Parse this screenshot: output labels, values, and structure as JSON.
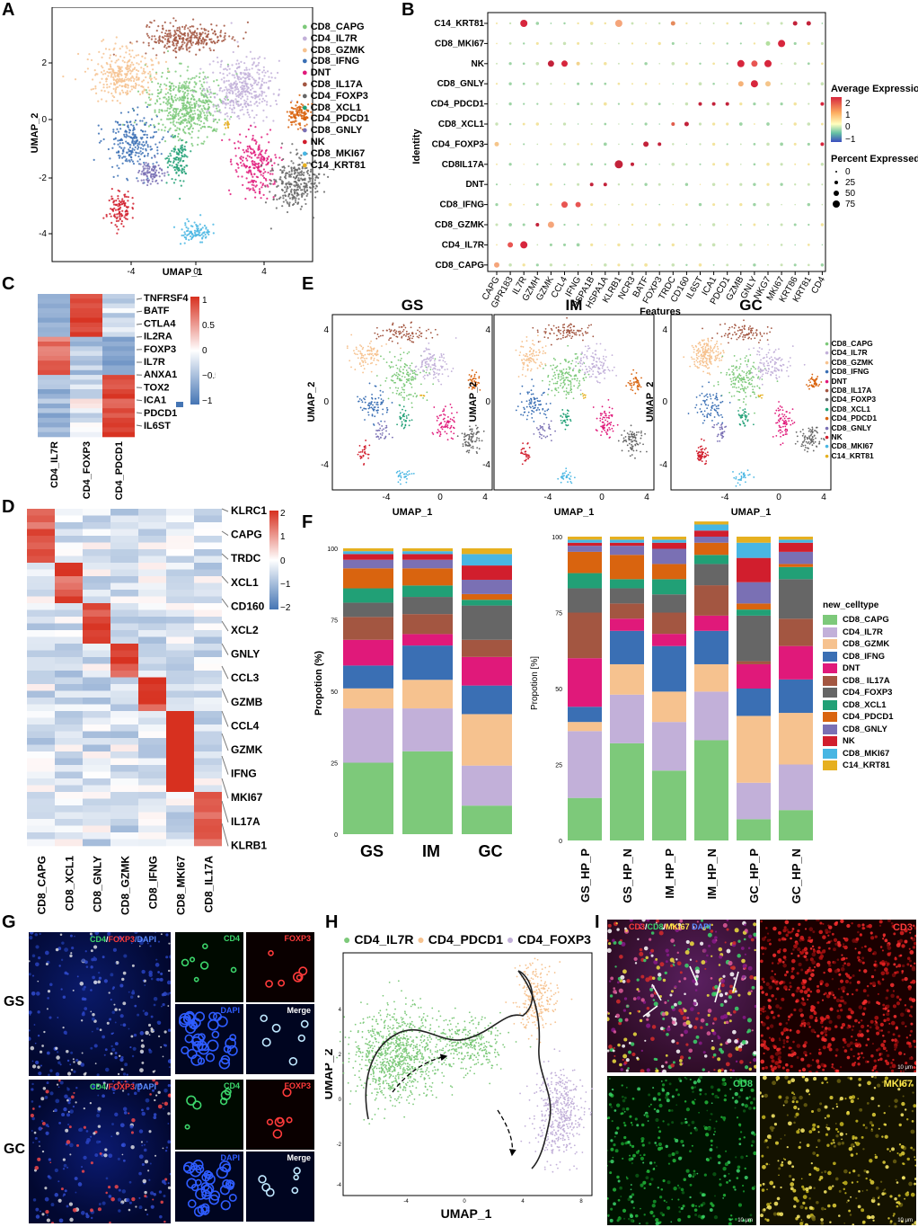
{
  "panel_labels": [
    "A",
    "B",
    "C",
    "D",
    "E",
    "F",
    "G",
    "H",
    "I"
  ],
  "celltypes": [
    "CD8_CAPG",
    "CD4_IL7R",
    "CD8_GZMK",
    "CD8_IFNG",
    "DNT",
    "CD8_IL17A",
    "CD4_FOXP3",
    "CD8_XCL1",
    "CD4_PDCD1",
    "CD8_GNLY",
    "NK",
    "CD8_MKI67",
    "C14_KRT81"
  ],
  "colors": {
    "CD8_CAPG": "#7dc97a",
    "CD4_IL7R": "#c2b0d9",
    "CD8_GZMK": "#f6c28f",
    "CD8_IFNG": "#3a6fb4",
    "DNT": "#e0197a",
    "CD8_IL17A": "#a35641",
    "CD4_FOXP3": "#666666",
    "CD8_XCL1": "#21a076",
    "CD4_PDCD1": "#d9640f",
    "CD8_GNLY": "#7a70b4",
    "NK": "#d11e2d",
    "CD8_MKI67": "#48b6e3",
    "C14_KRT81": "#e6b020"
  },
  "panelA": {
    "xlabel": "UMAP_1",
    "ylabel": "UMAP_2",
    "xticks": [
      "-4",
      "0",
      "4"
    ],
    "yticks": [
      "2",
      "0",
      "-2",
      "-4"
    ],
    "legend_labels": [
      "CD8_CAPG",
      "CD4_IL7R",
      "CD8_GZMK",
      "CD8_IFNG",
      "DNT",
      "CD8_IL17A",
      "CD4_FOXP3",
      "CD8_XCL1",
      "CD4_PDCD1",
      "CD8_GNLY",
      "NK",
      "CD8_MKI67",
      "C14_KRT81"
    ]
  },
  "panelB": {
    "xlabel": "Features",
    "ylabel": "Identity",
    "features": [
      "CAPG",
      "GPR183",
      "IL7R",
      "GZMH",
      "GZMK",
      "CCL4",
      "IFNG",
      "HSPA1B",
      "HSPA1A",
      "KLRB1",
      "NCR3",
      "BATF",
      "FOXP3",
      "TRDC",
      "CD160",
      "IL6ST",
      "ICA1",
      "PDCD1",
      "GZMB",
      "GNLY",
      "NKG7",
      "MKI67",
      "KRT86",
      "KRT81",
      "CD4"
    ],
    "identities": [
      "C14_KRT81",
      "CD8_MKI67",
      "NK",
      "CD8_GNLY",
      "CD4_PDCD1",
      "CD8_XCL1",
      "CD4_FOXP3",
      "CD8IL17A",
      "DNT",
      "CD8_IFNG",
      "CD8_GZMK",
      "CD4_IL7R",
      "CD8_CAPG"
    ],
    "expr_title": "Average Expression",
    "expr_ticks": [
      "2",
      "1",
      "0",
      "−1"
    ],
    "pct_title": "Percent Expressed",
    "pct_ticks": [
      "0",
      "25",
      "50",
      "75"
    ]
  },
  "panelC": {
    "columns": [
      "CD4_IL7R",
      "CD4_FOXP3",
      "CD4_PDCD1"
    ],
    "genes": [
      "TNFRSF4",
      "BATF",
      "CTLA4",
      "IL2RA",
      "FOXP3",
      "IL7R",
      "ANXA1",
      "TOX2",
      "ICA1",
      "PDCD1",
      "IL6ST"
    ],
    "scale_ticks": [
      "1",
      "0.5",
      "0",
      "−0.5",
      "−1"
    ]
  },
  "panelD": {
    "columns": [
      "CD8_CAPG",
      "CD8_XCL1",
      "CD8_GNLY",
      "CD8_GZMK",
      "CD8_IFNG",
      "CD8_MKI67",
      "CD8_IL17A"
    ],
    "genes": [
      "KLRC1",
      "CAPG",
      "TRDC",
      "XCL1",
      "CD160",
      "XCL2",
      "GNLY",
      "CCL3",
      "GZMB",
      "CCL4",
      "GZMK",
      "IFNG",
      "MKI67",
      "IL17A",
      "KLRB1"
    ],
    "scale_ticks": [
      "2",
      "1",
      "0",
      "−1",
      "−2"
    ]
  },
  "panelE": {
    "titles": [
      "GS",
      "IM",
      "GC"
    ],
    "xlabel": "UMAP_1",
    "ylabel": "UMAP_2",
    "xticks": [
      "-4",
      "0",
      "4"
    ],
    "yticks": [
      "4",
      "0",
      "-4"
    ],
    "legend_labels": [
      "CD8_CAPG",
      "CD4_IL7R",
      "CD8_GZMK",
      "CD8_IFNG",
      "DNT",
      "CD8_IL17A",
      "CD4_FOXP3",
      "CD8_XCL1",
      "CD4_PDCD1",
      "CD8_GNLY",
      "NK",
      "CD8_MKI67",
      "C14_KRT81"
    ]
  },
  "panelF": {
    "legend_title": "new_celltype",
    "legend_labels": [
      "CD8_CAPG",
      "CD4_IL7R",
      "CD8_GZMK",
      "CD8_IFNG",
      "DNT",
      "CD8_ IL17A",
      " CD4_FOXP3",
      "CD8_XCL1",
      "CD4_PDCD1",
      " CD8_GNLY",
      "NK",
      "CD8_MKI67",
      " C14_KRT81"
    ],
    "left_ylabel": "Propotion (%)",
    "right_ylabel": "Propotion [%]",
    "yticks": [
      "100",
      "75",
      "50",
      "25",
      "0"
    ]
  },
  "chart_data": [
    {
      "type": "bar",
      "stacked": true,
      "title": "",
      "ylabel": "Propotion (%)",
      "ylim": [
        0,
        100
      ],
      "categories": [
        "GS",
        "IM",
        "GC"
      ],
      "series": [
        {
          "name": "CD8_CAPG",
          "values": [
            25,
            29,
            10
          ]
        },
        {
          "name": "CD4_IL7R",
          "values": [
            19,
            15,
            14
          ]
        },
        {
          "name": "CD8_GZMK",
          "values": [
            7,
            10,
            18
          ]
        },
        {
          "name": "CD8_IFNG",
          "values": [
            8,
            12,
            10
          ]
        },
        {
          "name": "DNT",
          "values": [
            9,
            4,
            10
          ]
        },
        {
          "name": "CD8_IL17A",
          "values": [
            8,
            7,
            6
          ]
        },
        {
          "name": "CD4_FOXP3",
          "values": [
            5,
            6,
            12
          ]
        },
        {
          "name": "CD8_XCL1",
          "values": [
            5,
            4,
            2
          ]
        },
        {
          "name": "CD4_PDCD1",
          "values": [
            7,
            6,
            2
          ]
        },
        {
          "name": "CD8_GNLY",
          "values": [
            3,
            3,
            5
          ]
        },
        {
          "name": "NK",
          "values": [
            2,
            2,
            5
          ]
        },
        {
          "name": "CD8_MKI67",
          "values": [
            1,
            1,
            4
          ]
        },
        {
          "name": "C14_KRT81",
          "values": [
            1,
            1,
            2
          ]
        }
      ]
    },
    {
      "type": "bar",
      "stacked": true,
      "title": "",
      "ylabel": "Propotion [%]",
      "ylim": [
        0,
        100
      ],
      "categories": [
        "GS_HP_P",
        "GS_HP_N",
        "IM_HP_P",
        "IM_HP_N",
        "GC_HP_P",
        "GC_HP_N"
      ],
      "series": [
        {
          "name": "CD8_CAPG",
          "values": [
            14,
            32,
            23,
            33,
            7,
            10
          ]
        },
        {
          "name": "CD4_IL7R",
          "values": [
            22,
            16,
            16,
            16,
            12,
            15
          ]
        },
        {
          "name": "CD8_GZMK",
          "values": [
            3,
            10,
            10,
            9,
            22,
            17
          ]
        },
        {
          "name": "CD8_IFNG",
          "values": [
            5,
            11,
            15,
            11,
            9,
            11
          ]
        },
        {
          "name": "DNT",
          "values": [
            16,
            4,
            4,
            5,
            8,
            11
          ]
        },
        {
          "name": "CD8_IL17A",
          "values": [
            15,
            5,
            7,
            10,
            1,
            9
          ]
        },
        {
          "name": "CD4_FOXP3",
          "values": [
            8,
            5,
            6,
            7,
            15,
            13
          ]
        },
        {
          "name": "CD8_XCL1",
          "values": [
            5,
            3,
            5,
            3,
            2,
            4
          ]
        },
        {
          "name": "CD4_PDCD1",
          "values": [
            7,
            8,
            5,
            4,
            2,
            1
          ]
        },
        {
          "name": "CD8_GNLY",
          "values": [
            2,
            3,
            5,
            2,
            7,
            4
          ]
        },
        {
          "name": "NK",
          "values": [
            1,
            1,
            2,
            2,
            8,
            3
          ]
        },
        {
          "name": "CD8_MKI67",
          "values": [
            1,
            1,
            1,
            2,
            5,
            1
          ]
        },
        {
          "name": "C14_KRT81",
          "values": [
            1,
            1,
            1,
            1,
            2,
            1
          ]
        }
      ]
    }
  ],
  "panelG": {
    "rows": [
      "GS",
      "GC"
    ],
    "overview_label_parts": [
      "CD4",
      "/",
      "FOXP3",
      "/DAPI"
    ],
    "tile_labels": [
      "CD4",
      "FOXP3",
      "DAPI",
      "Merge"
    ]
  },
  "panelH": {
    "legend": [
      "CD4_IL7R",
      "CD4_PDCD1",
      "CD4_FOXP3"
    ],
    "xlabel": "UMAP_1",
    "ylabel": "UMAP_2",
    "xticks": [
      "-4",
      "0",
      "4",
      "8"
    ],
    "yticks": [
      "4",
      "2",
      "0",
      "-2",
      "-4"
    ]
  },
  "panelI": {
    "overview_label_parts": [
      "CD3",
      "/",
      "CD8",
      "/",
      "MKI67",
      " DAPI"
    ],
    "tile_labels": [
      "CD3",
      "CD8",
      "MKI67"
    ],
    "scale_label": "10 μm"
  }
}
